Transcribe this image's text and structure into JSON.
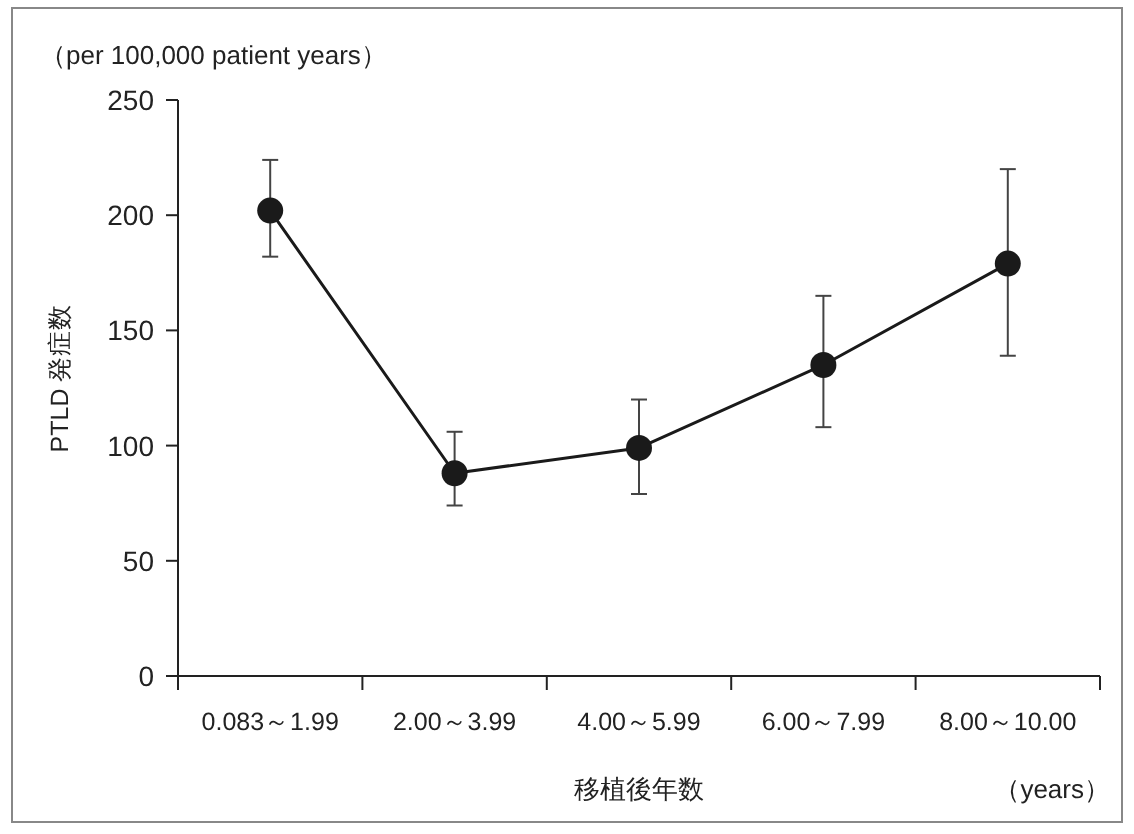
{
  "chart_data": {
    "type": "line",
    "xlabel": "移植後年数",
    "ylabel": "PTLD 発症数",
    "annotations": [
      "（per 100,000 patient years）",
      "（years）"
    ],
    "categories": [
      "0.083～1.99",
      "2.00～3.99",
      "4.00～5.99",
      "6.00～7.99",
      "8.00～10.00"
    ],
    "series": [
      {
        "color": "#1a1a1a",
        "values": [
          202,
          88,
          99,
          135,
          179
        ],
        "errors": [
          [
            182,
            224
          ],
          [
            74,
            106
          ],
          [
            79,
            120
          ],
          [
            108,
            165
          ],
          [
            139,
            220
          ]
        ]
      }
    ],
    "ylim": [
      0,
      250
    ],
    "yticks": [
      0,
      50,
      100,
      150,
      200,
      250
    ],
    "marker": "circle",
    "line_style": "solid"
  }
}
